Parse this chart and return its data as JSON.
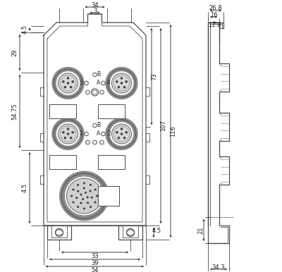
{
  "bg_color": "#ffffff",
  "line_color": "#4a4a4a",
  "dim_color": "#222222",
  "fig_width": 4.0,
  "fig_height": 3.86,
  "dpi": 100,
  "dim_labels": {
    "top_34": "34",
    "top_3": "3",
    "left_4_5_top": "4.5",
    "left_29": "29",
    "left_54_75": "54.75",
    "left_4_5_bot": "4.5",
    "right_107": "107",
    "right_116": "116",
    "right_73": "73",
    "bot_33": "33",
    "bot_39": "39",
    "bot_54": "54",
    "bot_4_5": "4.5",
    "side_26_8": "26.8",
    "side_16": "16",
    "side_11_8": "11.8",
    "side_21": "21",
    "side_34_3": "34.3"
  }
}
